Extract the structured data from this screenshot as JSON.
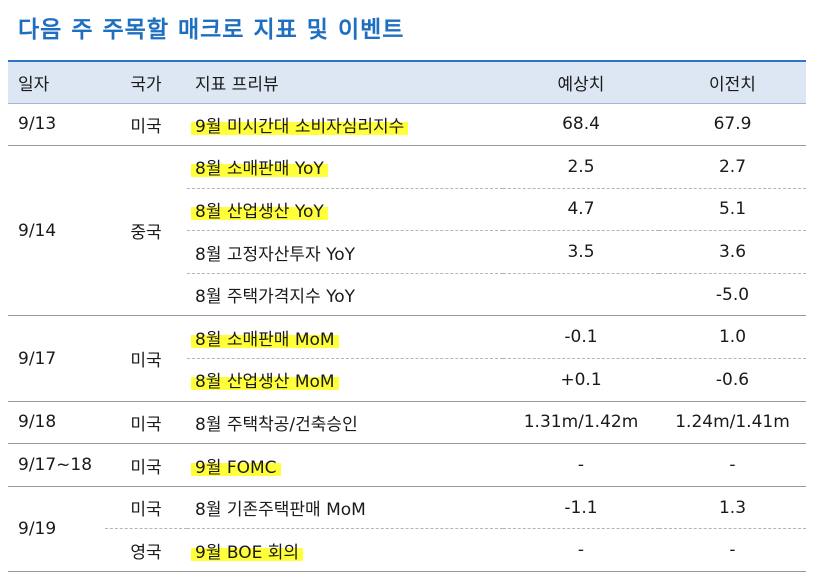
{
  "title": "다음 주 주목할 매크로 지표 및 이벤트",
  "columns": [
    "일자",
    "국가",
    "지표 프리뷰",
    "예상치",
    "이전치"
  ],
  "highlight_color": "#ffff3a",
  "rows": [
    {
      "date": "9/13",
      "country": "미국",
      "indicator": "9월 미시간대 소비자심리지수",
      "forecast": "68.4",
      "previous": "67.9",
      "highlight": true
    },
    {
      "date": "9/14",
      "country": "중국",
      "indicator": "8월 소매판매 YoY",
      "forecast": "2.5",
      "previous": "2.7",
      "highlight": true
    },
    {
      "date": "",
      "country": "",
      "indicator": "8월 산업생산 YoY",
      "forecast": "4.7",
      "previous": "5.1",
      "highlight": true
    },
    {
      "date": "",
      "country": "",
      "indicator": "8월 고정자산투자 YoY",
      "forecast": "3.5",
      "previous": "3.6",
      "highlight": false
    },
    {
      "date": "",
      "country": "",
      "indicator": "8월 주택가격지수 YoY",
      "forecast": "",
      "previous": "-5.0",
      "highlight": false
    },
    {
      "date": "9/17",
      "country": "미국",
      "indicator": "8월 소매판매 MoM",
      "forecast": "-0.1",
      "previous": "1.0",
      "highlight": true
    },
    {
      "date": "",
      "country": "",
      "indicator": "8월 산업생산 MoM",
      "forecast": "+0.1",
      "previous": "-0.6",
      "highlight": true
    },
    {
      "date": "9/18",
      "country": "미국",
      "indicator": "8월 주택착공/건축승인",
      "forecast": "1.31m/1.42m",
      "previous": "1.24m/1.41m",
      "highlight": false
    },
    {
      "date": "9/17~18",
      "country": "미국",
      "indicator": "9월 FOMC",
      "forecast": "-",
      "previous": "-",
      "highlight": true
    },
    {
      "date": "9/19",
      "country": "미국",
      "indicator": "8월 기존주택판매 MoM",
      "forecast": "-1.1",
      "previous": "1.3",
      "highlight": false
    },
    {
      "date": "",
      "country": "영국",
      "indicator": "9월 BOE 회의",
      "forecast": "-",
      "previous": "-",
      "highlight": true
    }
  ]
}
